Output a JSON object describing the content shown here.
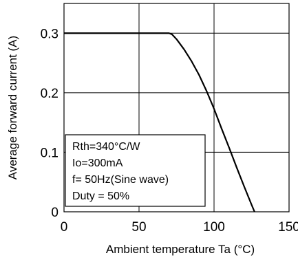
{
  "chart_data": {
    "type": "line",
    "title": "",
    "xlabel": "Ambient temperature  Ta  (°C)",
    "ylabel": "Average forward current  (A)",
    "xlim": [
      0,
      150
    ],
    "ylim": [
      0,
      0.35
    ],
    "grid": true,
    "x_ticks": [
      0,
      50,
      100,
      150
    ],
    "x_tick_labels": [
      "0",
      "50",
      "100",
      "150"
    ],
    "y_ticks": [
      0,
      0.1,
      0.2,
      0.3
    ],
    "y_tick_labels": [
      "0",
      "0.1",
      "0.2",
      "0.3"
    ],
    "series": [
      {
        "x": [
          0,
          70,
          72,
          75,
          80,
          85,
          90,
          95,
          100,
          105,
          110,
          115,
          120,
          125,
          127
        ],
        "y": [
          0.3,
          0.3,
          0.298,
          0.29,
          0.273,
          0.253,
          0.23,
          0.203,
          0.173,
          0.14,
          0.108,
          0.075,
          0.043,
          0.012,
          0.0
        ]
      }
    ],
    "annotations": [
      "Rth=340°C/W",
      "Io=300mA",
      "f= 50Hz(Sine wave)",
      "Duty = 50%"
    ]
  }
}
